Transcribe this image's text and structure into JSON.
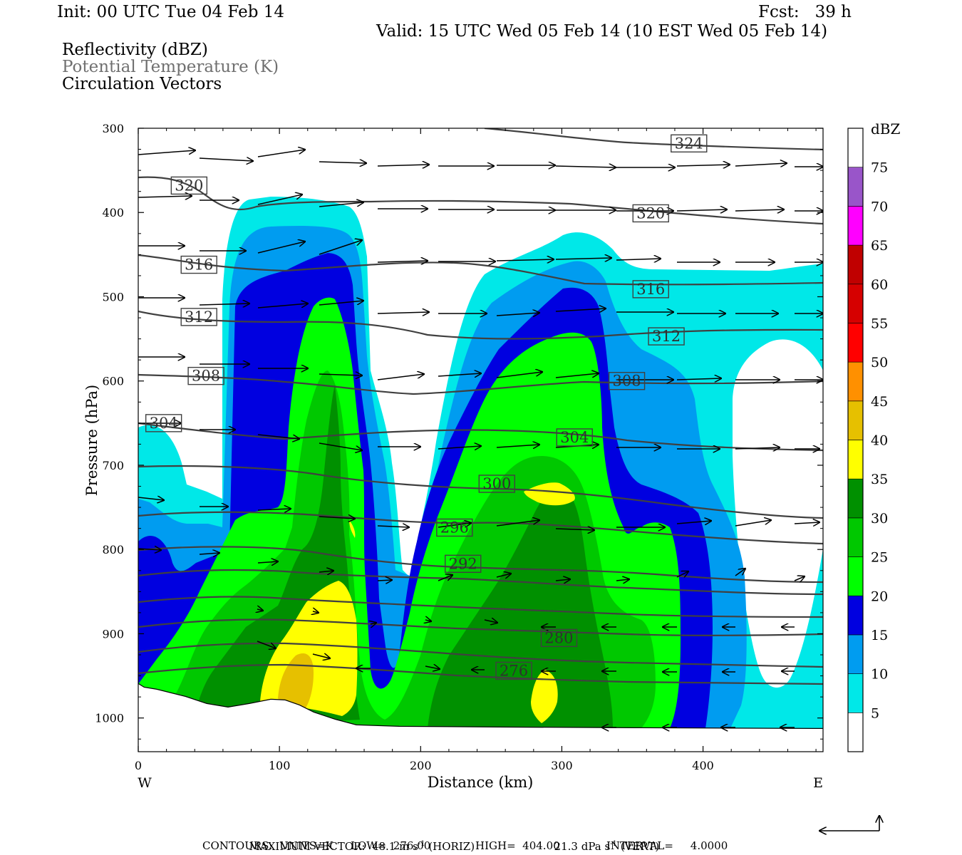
{
  "header": {
    "init": "Init: 00 UTC Tue 04 Feb 14",
    "fcst": "Fcst:   39 h",
    "valid": "Valid: 15 UTC Wed 05 Feb 14 (10 EST Wed 05 Feb 14)",
    "fields": [
      "Reflectivity (dBZ)",
      "Potential Temperature (K)",
      "Circulation Vectors"
    ]
  },
  "footer": {
    "max_vector_label": "MAXIMUM VECTOR:",
    "max_vector_horiz": "48.1 m s",
    "horiz_suffix": "(HORIZ)",
    "max_vector_vert": "21.3 dPa s",
    "vert_suffix": "(VERT)",
    "contours_units": "CONTOURS:  UNITS=K",
    "contours_low": "LOW=  276.00",
    "contours_high": "HIGH=  404.00",
    "contours_interval": "INTERVAL=     4.0000"
  },
  "colors": {
    "theta_contour": "#404040",
    "vector": "#000000",
    "dbz_bins": [
      "#ffffff",
      "#00e8e8",
      "#009cf0",
      "#0000e0",
      "#00ff00",
      "#00c800",
      "#009000",
      "#ffff00",
      "#e6c000",
      "#ff9000",
      "#ff0000",
      "#d60000",
      "#c00000",
      "#ff00ff",
      "#9955c9",
      "#ffffff"
    ]
  },
  "chart_data": {
    "type": "heatmap",
    "title": "Reflectivity (dBZ) / Potential Temperature (K) / Circulation Vectors",
    "xlabel": "Distance (km)",
    "ylabel": "Pressure (hPa)",
    "xlim": [
      0,
      485
    ],
    "ylim": [
      1040,
      300
    ],
    "x_ticks": [
      0,
      100,
      200,
      300,
      400
    ],
    "y_ticks": [
      300,
      400,
      500,
      600,
      700,
      800,
      900,
      1000
    ],
    "x_end_labels": {
      "left": "W",
      "right": "E"
    },
    "colorbar": {
      "label": "dBZ",
      "levels": [
        5,
        10,
        15,
        20,
        25,
        30,
        35,
        40,
        45,
        50,
        55,
        60,
        65,
        70,
        75
      ]
    },
    "theta_contours": {
      "units": "K",
      "labeled_values": [
        276,
        280,
        292,
        296,
        300,
        304,
        308,
        312,
        316,
        320,
        324
      ],
      "labels": [
        {
          "value": "324",
          "x": 390,
          "p": 318
        },
        {
          "value": "320",
          "x": 36,
          "p": 368
        },
        {
          "value": "320",
          "x": 363,
          "p": 401
        },
        {
          "value": "316",
          "x": 43,
          "p": 462
        },
        {
          "value": "316",
          "x": 363,
          "p": 491
        },
        {
          "value": "312",
          "x": 43,
          "p": 524
        },
        {
          "value": "312",
          "x": 374,
          "p": 547
        },
        {
          "value": "308",
          "x": 48,
          "p": 594
        },
        {
          "value": "308",
          "x": 346,
          "p": 600
        },
        {
          "value": "304",
          "x": 18,
          "p": 650
        },
        {
          "value": "304",
          "x": 309,
          "p": 667
        },
        {
          "value": "300",
          "x": 254,
          "p": 722
        },
        {
          "value": "296",
          "x": 224,
          "p": 774
        },
        {
          "value": "292",
          "x": 230,
          "p": 817
        },
        {
          "value": "280",
          "x": 298,
          "p": 905
        },
        {
          "value": "276",
          "x": 266,
          "p": 944
        }
      ]
    },
    "terrain_surface_hPa": [
      [
        0,
        960
      ],
      [
        10,
        965
      ],
      [
        30,
        975
      ],
      [
        60,
        988
      ],
      [
        80,
        990
      ],
      [
        100,
        982
      ],
      [
        110,
        983
      ],
      [
        125,
        993
      ],
      [
        140,
        1003
      ],
      [
        160,
        1010
      ],
      [
        200,
        1012
      ],
      [
        260,
        1013
      ],
      [
        400,
        1014
      ],
      [
        485,
        1015
      ]
    ]
  }
}
